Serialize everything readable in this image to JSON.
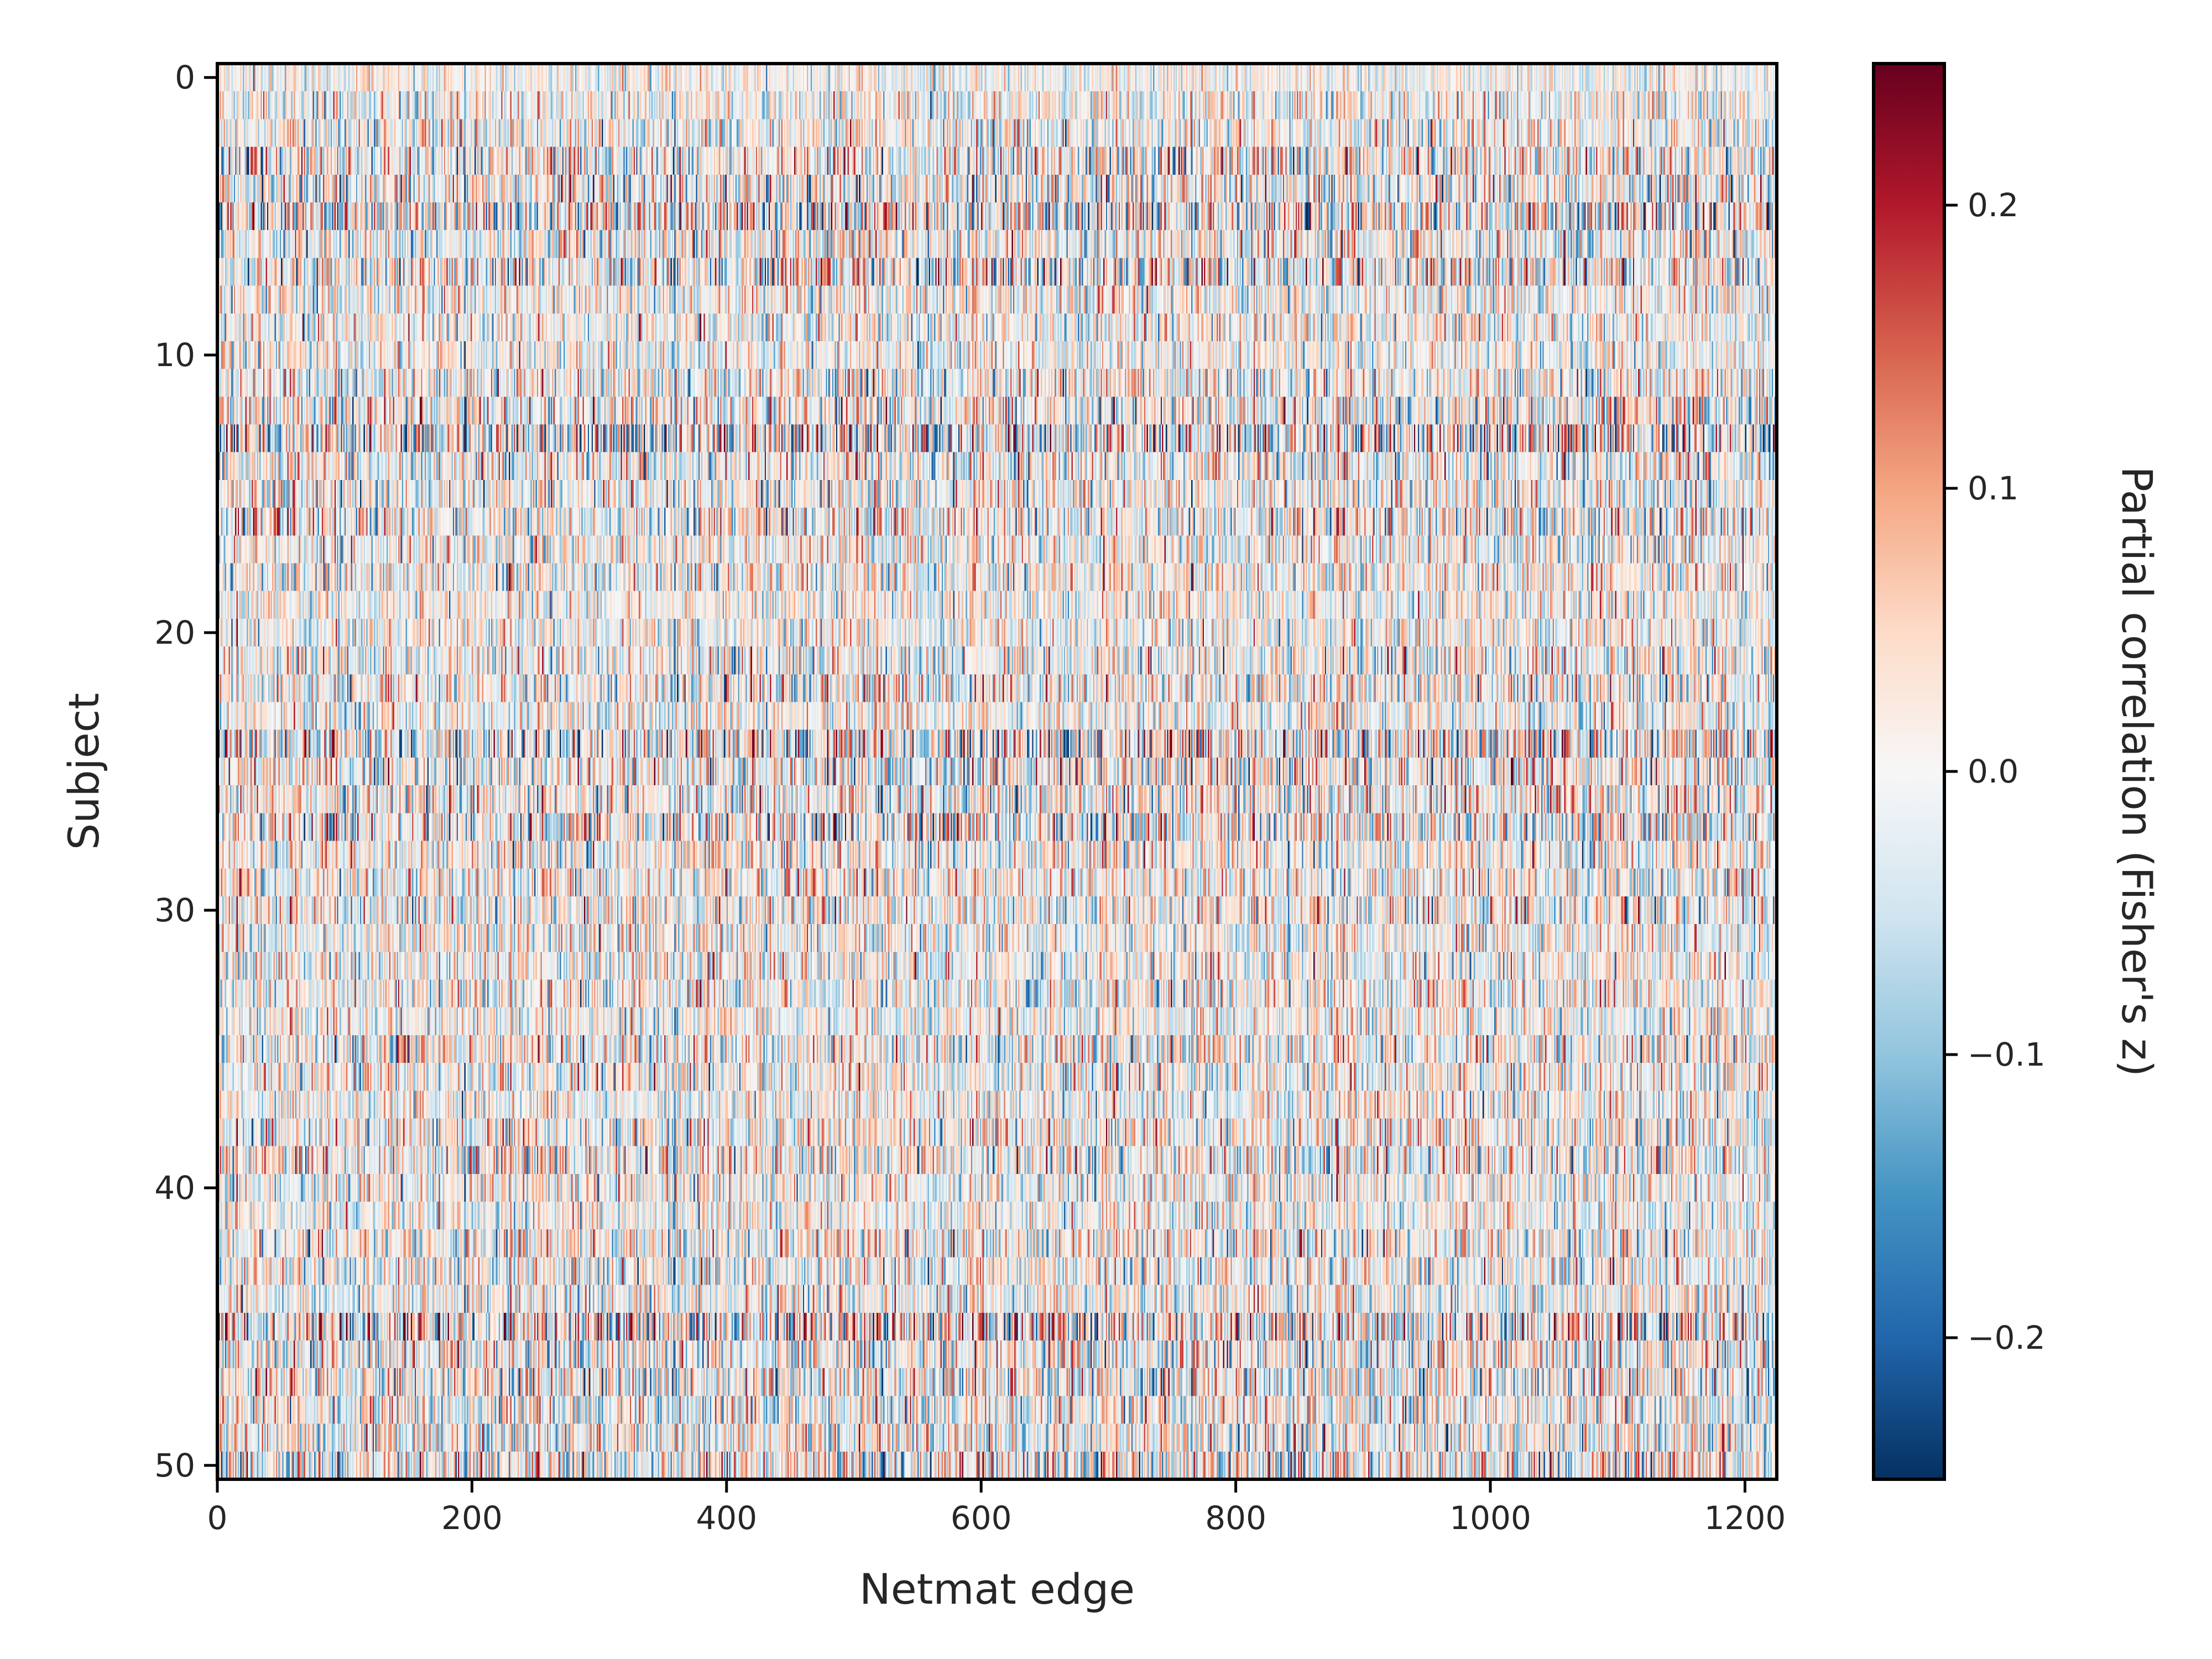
{
  "chart_data": {
    "type": "heatmap",
    "title": "",
    "xlabel": "Netmat edge",
    "ylabel": "Subject",
    "x_ticks": [
      0,
      200,
      400,
      600,
      800,
      1000,
      1200
    ],
    "y_ticks": [
      0,
      10,
      20,
      30,
      40,
      50
    ],
    "xlim": [
      0,
      1225
    ],
    "ylim": [
      50.5,
      -0.5
    ],
    "n_rows": 51,
    "n_cols": 1225,
    "colormap": "RdBu_r",
    "value_range": [
      -0.25,
      0.25
    ],
    "colorbar": {
      "label": "Partial correlation (Fisher's z)",
      "ticks": [
        -0.2,
        -0.1,
        0.0,
        0.1,
        0.2
      ],
      "tick_labels": [
        "−0.2",
        "−0.1",
        "0.0",
        "0.1",
        "0.2"
      ],
      "position": "right"
    },
    "grid": false,
    "values_note": "random per-subject netmat values; row amplitude varies by subject",
    "row_amplitudes": [
      0.045,
      0.06,
      0.07,
      0.09,
      0.085,
      0.11,
      0.075,
      0.1,
      0.07,
      0.065,
      0.06,
      0.08,
      0.085,
      0.12,
      0.08,
      0.075,
      0.085,
      0.07,
      0.075,
      0.06,
      0.065,
      0.075,
      0.08,
      0.065,
      0.11,
      0.09,
      0.085,
      0.1,
      0.07,
      0.075,
      0.08,
      0.065,
      0.07,
      0.07,
      0.06,
      0.085,
      0.07,
      0.065,
      0.075,
      0.085,
      0.07,
      0.06,
      0.08,
      0.075,
      0.07,
      0.12,
      0.085,
      0.09,
      0.075,
      0.08,
      0.095
    ]
  }
}
